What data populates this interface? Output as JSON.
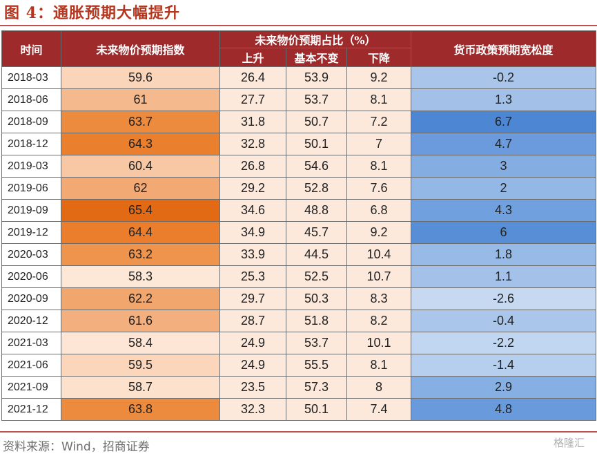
{
  "title": "图 4：通胀预期大幅提升",
  "headers": {
    "time": "时间",
    "index": "未来物价预期指数",
    "share_group": "未来物价预期占比（%）",
    "up": "上升",
    "same": "基本不变",
    "down": "下降",
    "policy": "货币政策预期宽松度"
  },
  "rows": [
    {
      "date": "2018-03",
      "index": "59.6",
      "up": "26.4",
      "same": "53.9",
      "down": "9.2",
      "policy": "-0.2",
      "index_color": "#fbd5b9",
      "policy_color": "#a9c5ea"
    },
    {
      "date": "2018-06",
      "index": "61",
      "up": "27.7",
      "same": "53.7",
      "down": "8.1",
      "policy": "1.3",
      "index_color": "#f5b98e",
      "policy_color": "#a2c0e8"
    },
    {
      "date": "2018-09",
      "index": "63.7",
      "up": "31.8",
      "same": "50.7",
      "down": "7.2",
      "policy": "6.7",
      "index_color": "#ec8a3e",
      "policy_color": "#4d86d2"
    },
    {
      "date": "2018-12",
      "index": "64.3",
      "up": "32.8",
      "same": "50.1",
      "down": "7",
      "policy": "4.7",
      "index_color": "#ea7f2d",
      "policy_color": "#6b9bdc"
    },
    {
      "date": "2019-03",
      "index": "60.4",
      "up": "26.8",
      "same": "54.6",
      "down": "8.1",
      "policy": "3",
      "index_color": "#f8c7a3",
      "policy_color": "#84aee2"
    },
    {
      "date": "2019-06",
      "index": "62",
      "up": "29.2",
      "same": "52.8",
      "down": "7.6",
      "policy": "2",
      "index_color": "#f2a973",
      "policy_color": "#94b8e6"
    },
    {
      "date": "2019-09",
      "index": "65.4",
      "up": "34.6",
      "same": "48.8",
      "down": "6.8",
      "policy": "4.3",
      "index_color": "#e26a15",
      "policy_color": "#71a0de"
    },
    {
      "date": "2019-12",
      "index": "64.4",
      "up": "34.9",
      "same": "45.7",
      "down": "9.2",
      "policy": "6",
      "index_color": "#ea7e2c",
      "policy_color": "#588ed6"
    },
    {
      "date": "2020-03",
      "index": "63.2",
      "up": "33.9",
      "same": "44.5",
      "down": "10.4",
      "policy": "1.8",
      "index_color": "#ee944d",
      "policy_color": "#97bae6"
    },
    {
      "date": "2020-06",
      "index": "58.3",
      "up": "25.3",
      "same": "52.5",
      "down": "10.7",
      "policy": "1.1",
      "index_color": "#fde8d8",
      "policy_color": "#a4c2e9"
    },
    {
      "date": "2020-09",
      "index": "62.2",
      "up": "29.7",
      "same": "50.3",
      "down": "8.3",
      "policy": "-2.6",
      "index_color": "#f1a66d",
      "policy_color": "#c6d9f1"
    },
    {
      "date": "2020-12",
      "index": "61.6",
      "up": "28.7",
      "same": "51.8",
      "down": "8.2",
      "policy": "-0.4",
      "index_color": "#f3b07e",
      "policy_color": "#aac6ea"
    },
    {
      "date": "2021-03",
      "index": "58.4",
      "up": "24.9",
      "same": "53.7",
      "down": "10.1",
      "policy": "-2.2",
      "index_color": "#fde6d5",
      "policy_color": "#c1d6f0"
    },
    {
      "date": "2021-06",
      "index": "59.5",
      "up": "24.9",
      "same": "55.5",
      "down": "8.1",
      "policy": "-1.4",
      "index_color": "#fbd6bb",
      "policy_color": "#b7cfee"
    },
    {
      "date": "2021-09",
      "index": "58.7",
      "up": "23.5",
      "same": "57.3",
      "down": "8",
      "policy": "2.9",
      "index_color": "#fce1cd",
      "policy_color": "#86afe3"
    },
    {
      "date": "2021-12",
      "index": "63.8",
      "up": "32.3",
      "same": "50.1",
      "down": "7.4",
      "policy": "4.8",
      "index_color": "#ec8a3d",
      "policy_color": "#699adc"
    }
  ],
  "source": "资料来源：Wind，招商证券",
  "watermark": "格隆汇"
}
